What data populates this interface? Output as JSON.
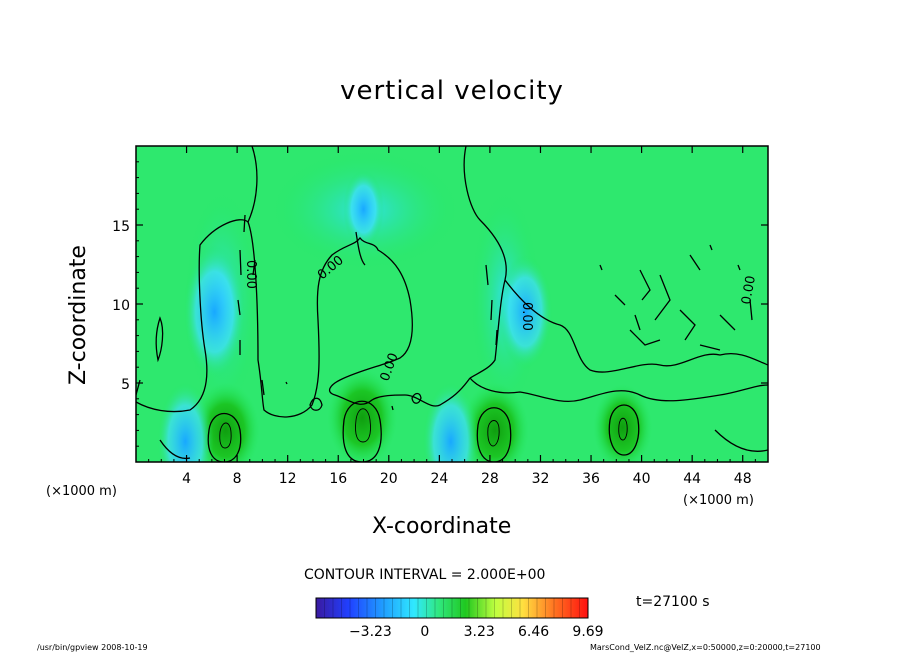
{
  "chart_data": {
    "type": "heatmap",
    "title": "vertical velocity",
    "xlabel": "X-coordinate",
    "ylabel": "Z-coordinate",
    "x_unit": "(×1000 m)",
    "xlim": [
      0,
      50
    ],
    "ylim": [
      0,
      20
    ],
    "x_ticks": [
      4,
      8,
      12,
      16,
      20,
      24,
      28,
      32,
      36,
      40,
      44,
      48
    ],
    "y_ticks": [
      5,
      10,
      15
    ],
    "contour_interval": "CONTOUR INTERVAL = 2.000E+00",
    "contour_labels": [
      "0.00",
      "0.00",
      "0.00",
      "0.00",
      "0.00"
    ],
    "colorbar": {
      "min": -6.46,
      "max": 9.69,
      "tick_values": [
        -3.23,
        0,
        3.23,
        6.46,
        9.69
      ],
      "tick_labels": [
        "-3.23",
        "0",
        "3.23",
        "6.46",
        "9.69"
      ]
    },
    "features": [
      {
        "x": 7.1,
        "z": 2.0,
        "w": 4.0
      },
      {
        "x": 17.9,
        "z": 2.8,
        "w": 4.2
      },
      {
        "x": 28.4,
        "z": 2.0,
        "w": 4.0
      },
      {
        "x": 38.5,
        "z": 2.2,
        "w": 3.2
      },
      {
        "x": 6.2,
        "z": 9.5,
        "w": -3.5
      },
      {
        "x": 30.8,
        "z": 9.5,
        "w": -2.8
      },
      {
        "x": 18.0,
        "z": 16.0,
        "w": -1.5
      },
      {
        "x": 3.9,
        "z": 1.3,
        "w": -3.0
      },
      {
        "x": 24.9,
        "z": 1.3,
        "w": -3.0
      }
    ],
    "time": "t=27100 s"
  },
  "footer": {
    "left": "/usr/bin/gpview   2008-10-19",
    "right": "MarsCond_VelZ.nc@VelZ,x=0:50000,z=0:20000,t=27100"
  },
  "colors": {
    "background_field": "#22e85a",
    "updraft": "#14b414",
    "downdraft": "#1eb4ff",
    "frame": "#000000"
  }
}
